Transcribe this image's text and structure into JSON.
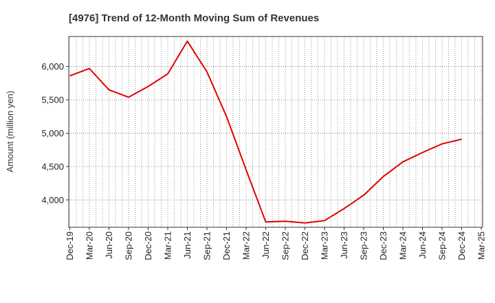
{
  "chart_data": {
    "type": "line",
    "title": "[4976]  Trend of 12-Month Moving Sum of Revenues",
    "xlabel": "",
    "ylabel": "Amount (million yen)",
    "x_ticks": [
      "Dec-19",
      "Mar-20",
      "Jun-20",
      "Sep-20",
      "Dec-20",
      "Mar-21",
      "Jun-21",
      "Sep-21",
      "Dec-21",
      "Mar-22",
      "Jun-22",
      "Sep-22",
      "Dec-22",
      "Mar-23",
      "Jun-23",
      "Sep-23",
      "Dec-23",
      "Mar-24",
      "Jun-24",
      "Sep-24",
      "Dec-24",
      "Mar-25"
    ],
    "y_ticks": [
      4000,
      4500,
      5000,
      5500,
      6000
    ],
    "y_tick_labels": [
      "4,000",
      "4,500",
      "5,000",
      "5,500",
      "6,000"
    ],
    "ylim": [
      3590,
      6450
    ],
    "grid": true,
    "series": [
      {
        "name": "",
        "color": "#e00000",
        "x": [
          "Dec-19",
          "Mar-20",
          "Jun-20",
          "Sep-20",
          "Dec-20",
          "Mar-21",
          "Jun-21",
          "Sep-21",
          "Dec-21",
          "Mar-22",
          "Jun-22",
          "Sep-22",
          "Dec-22",
          "Mar-23",
          "Jun-23",
          "Sep-23",
          "Dec-23",
          "Mar-24",
          "Jun-24",
          "Sep-24",
          "Dec-24"
        ],
        "values": [
          5860,
          5970,
          5650,
          5540,
          5700,
          5890,
          6380,
          5920,
          5250,
          4450,
          3670,
          3680,
          3655,
          3690,
          3870,
          4070,
          4350,
          4570,
          4710,
          4840,
          4910
        ]
      }
    ]
  }
}
